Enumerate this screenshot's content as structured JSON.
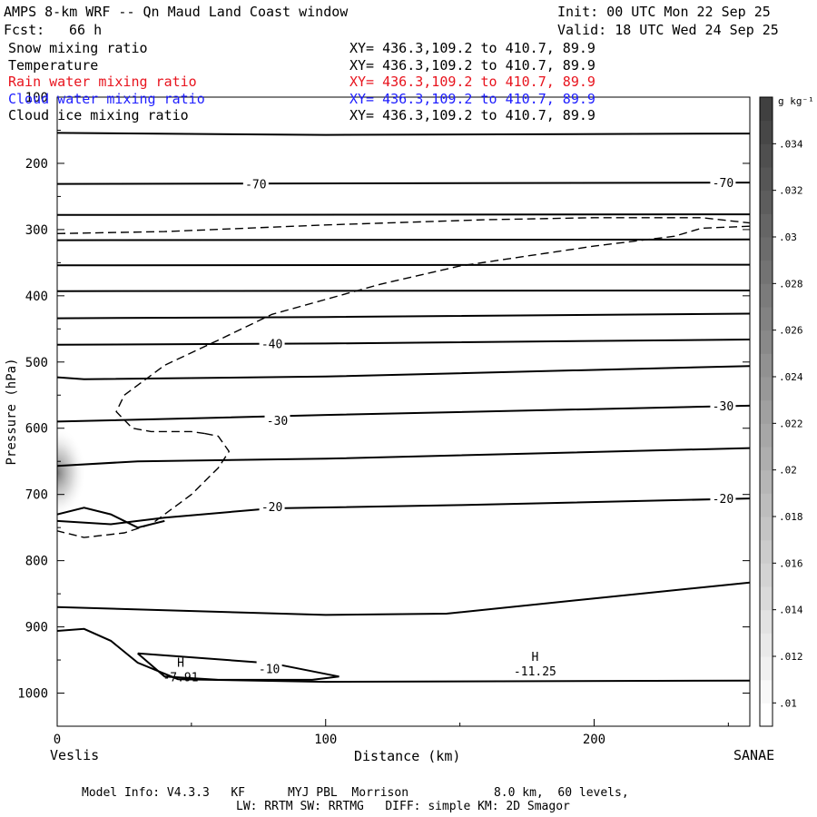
{
  "header": {
    "title": "AMPS 8-km WRF -- Qn Maud Land Coast window",
    "init": "Init: 00 UTC Mon 22 Sep 25",
    "fcst_label": "Fcst:",
    "fcst_value": "66 h",
    "valid": "Valid: 18 UTC Wed 24 Sep 25"
  },
  "fields": [
    {
      "name": "Snow mixing ratio",
      "xy": "XY= 436.3,109.2 to 410.7, 89.9",
      "color": "#000000"
    },
    {
      "name": "Temperature",
      "xy": "XY= 436.3,109.2 to 410.7, 89.9",
      "color": "#000000"
    },
    {
      "name": "Rain water mixing ratio",
      "xy": "XY= 436.3,109.2 to 410.7, 89.9",
      "color": "#e8141e"
    },
    {
      "name": "Cloud water mixing ratio",
      "xy": "XY= 436.3,109.2 to 410.7, 89.9",
      "color": "#1e1eff"
    },
    {
      "name": "Cloud ice mixing ratio",
      "xy": "XY= 436.3,109.2 to 410.7, 89.9",
      "color": "#000000"
    }
  ],
  "footer": {
    "line1": "Model Info: V4.3.3   KF      MYJ PBL  Morrison            8.0 km,  60 levels,",
    "line2": "LW: RRTM SW: RRTMG   DIFF: simple KM: 2D Smagor"
  },
  "chart_data": {
    "type": "contour-cross-section",
    "xlabel": "Distance (km)",
    "ylabel": "Pressure (hPa)",
    "xlim": [
      0,
      258
    ],
    "ylim": [
      1050,
      100
    ],
    "x_ticks": [
      0,
      100,
      200
    ],
    "y_ticks": [
      100,
      200,
      300,
      400,
      500,
      600,
      700,
      800,
      900,
      1000
    ],
    "left_endpoint": "Veslis",
    "right_endpoint": "SANAE",
    "colorbar": {
      "unit": "g kg⁻¹",
      "ticks": [
        ".01",
        ".012",
        ".014",
        ".016",
        ".018",
        ".02",
        ".022",
        ".024",
        ".026",
        ".028",
        ".03",
        ".032",
        ".034"
      ],
      "min": 0.009,
      "max": 0.036
    },
    "contour_labels": [
      {
        "text": "-70",
        "x": 74,
        "p": 231
      },
      {
        "text": "-70",
        "x": 248,
        "p": 229
      },
      {
        "text": "-40",
        "x": 80,
        "p": 472
      },
      {
        "text": "-30",
        "x": 82,
        "p": 588
      },
      {
        "text": "-30",
        "x": 248,
        "p": 566
      },
      {
        "text": "-20",
        "x": 80,
        "p": 718
      },
      {
        "text": "-20",
        "x": 248,
        "p": 706
      },
      {
        "text": "-10",
        "x": 79,
        "p": 963
      }
    ],
    "extrema": [
      {
        "symbol": "H",
        "value": "-7.91",
        "x": 46,
        "p": 971
      },
      {
        "symbol": "H",
        "value": "-11.25",
        "x": 178,
        "p": 962
      }
    ],
    "isotherms_solid": [
      [
        [
          0,
          154
        ],
        [
          100,
          157
        ],
        [
          258,
          155
        ]
      ],
      [
        [
          0,
          231
        ],
        [
          258,
          229
        ]
      ],
      [
        [
          0,
          278
        ],
        [
          258,
          277
        ]
      ],
      [
        [
          0,
          316
        ],
        [
          258,
          315
        ]
      ],
      [
        [
          0,
          354
        ],
        [
          258,
          353
        ]
      ],
      [
        [
          0,
          393
        ],
        [
          258,
          392
        ]
      ],
      [
        [
          0,
          434
        ],
        [
          100,
          432
        ],
        [
          258,
          427
        ]
      ],
      [
        [
          0,
          474
        ],
        [
          100,
          472
        ],
        [
          258,
          466
        ]
      ],
      [
        [
          0,
          523
        ],
        [
          10,
          526
        ],
        [
          100,
          522
        ],
        [
          258,
          506
        ]
      ],
      [
        [
          0,
          590
        ],
        [
          60,
          584
        ],
        [
          100,
          580
        ],
        [
          258,
          566
        ]
      ],
      [
        [
          0,
          657
        ],
        [
          30,
          650
        ],
        [
          100,
          646
        ],
        [
          258,
          630
        ]
      ],
      [
        [
          0,
          740
        ],
        [
          20,
          745
        ],
        [
          40,
          735
        ],
        [
          80,
          721
        ],
        [
          150,
          716
        ],
        [
          258,
          706
        ]
      ],
      [
        [
          0,
          870
        ],
        [
          100,
          882
        ],
        [
          145,
          880
        ],
        [
          200,
          857
        ],
        [
          258,
          833
        ]
      ],
      [
        [
          0,
          906
        ],
        [
          10,
          903
        ],
        [
          20,
          921
        ],
        [
          30,
          954
        ],
        [
          45,
          979
        ],
        [
          100,
          983
        ],
        [
          258,
          981
        ]
      ],
      [
        [
          30,
          940
        ],
        [
          80,
          955
        ],
        [
          105,
          975
        ],
        [
          95,
          980
        ],
        [
          60,
          980
        ],
        [
          40,
          975
        ],
        [
          30,
          940
        ]
      ],
      [
        [
          0,
          730
        ],
        [
          10,
          720
        ],
        [
          20,
          730
        ],
        [
          30,
          750
        ],
        [
          40,
          740
        ]
      ]
    ],
    "cloud_ice_dashed": [
      [
        [
          0,
          306
        ],
        [
          40,
          303
        ],
        [
          100,
          293
        ],
        [
          160,
          285
        ],
        [
          200,
          282
        ],
        [
          240,
          282
        ],
        [
          258,
          290
        ]
      ],
      [
        [
          258,
          295
        ],
        [
          240,
          298
        ],
        [
          230,
          310
        ],
        [
          200,
          325
        ],
        [
          150,
          355
        ],
        [
          120,
          383
        ],
        [
          80,
          428
        ],
        [
          60,
          467
        ],
        [
          40,
          505
        ],
        [
          25,
          550
        ],
        [
          22,
          575
        ],
        [
          28,
          600
        ],
        [
          35,
          605
        ],
        [
          50,
          605
        ],
        [
          55,
          608
        ]
      ],
      [
        [
          55,
          608
        ],
        [
          60,
          612
        ],
        [
          64,
          635
        ],
        [
          60,
          660
        ],
        [
          50,
          700
        ],
        [
          35,
          745
        ],
        [
          25,
          758
        ],
        [
          10,
          765
        ],
        [
          0,
          755
        ]
      ]
    ],
    "shading_center": {
      "x": 0,
      "p": 667,
      "value": 0.03
    }
  }
}
